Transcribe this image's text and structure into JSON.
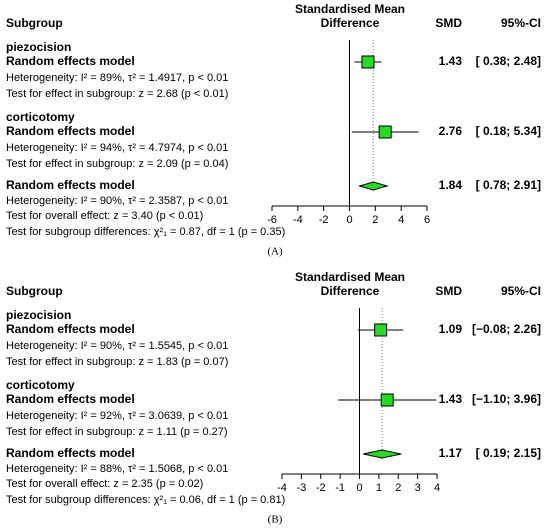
{
  "chart_data": [
    {
      "type": "forest",
      "panel_label": "(A)",
      "header": {
        "subgroup": "Subgroup",
        "effect_line1": "Standardised Mean",
        "effect_line2": "Difference",
        "smd": "SMD",
        "ci": "95%-CI"
      },
      "subgroups": [
        {
          "name": "piezocision",
          "model": "Random effects model",
          "heterogeneity": "Heterogeneity: I² = 89%, τ² = 1.4917, p < 0.01",
          "test": "Test for effect in subgroup: z = 2.68 (p < 0.01)",
          "smd": 1.43,
          "ci_lower": 0.38,
          "ci_upper": 2.48,
          "ci_label": "[ 0.38; 2.48]"
        },
        {
          "name": "corticotomy",
          "model": "Random effects model",
          "heterogeneity": "Heterogeneity: I² = 94%, τ² = 4.7974, p < 0.01",
          "test": "Test for effect in subgroup: z = 2.09 (p = 0.04)",
          "smd": 2.76,
          "ci_lower": 0.18,
          "ci_upper": 5.34,
          "ci_label": "[ 0.18; 5.34]"
        }
      ],
      "overall": {
        "model": "Random effects model",
        "heterogeneity": "Heterogeneity: I² = 90%, τ² = 2.3587, p < 0.01",
        "test": "Test for overall effect: z = 3.40 (p < 0.01)",
        "subgroup_test": "Test for subgroup differences: χ²₁ = 0.87, df = 1 (p = 0.35)",
        "smd": 1.84,
        "ci_lower": 0.78,
        "ci_upper": 2.91,
        "ci_label": "[ 0.78; 2.91]"
      },
      "xlim": [
        -6,
        6
      ],
      "xticks": [
        -6,
        -4,
        -2,
        0,
        2,
        4,
        6
      ],
      "marker_color": "#22dd22",
      "subgroup_color": "#0000cc"
    },
    {
      "type": "forest",
      "panel_label": "(B)",
      "header": {
        "subgroup": "Subgroup",
        "effect_line1": "Standardised Mean",
        "effect_line2": "Difference",
        "smd": "SMD",
        "ci": "95%-CI"
      },
      "subgroups": [
        {
          "name": "piezocision",
          "model": "Random effects model",
          "heterogeneity": "Heterogeneity: I² = 90%, τ² = 1.5545, p < 0.01",
          "test": "Test for effect in subgroup: z = 1.83 (p = 0.07)",
          "smd": 1.09,
          "ci_lower": -0.08,
          "ci_upper": 2.26,
          "ci_label": "[−0.08; 2.26]"
        },
        {
          "name": "corticotomy",
          "model": "Random effects model",
          "heterogeneity": "Heterogeneity: I² = 92%, τ² = 3.0639, p < 0.01",
          "test": "Test for effect in subgroup: z = 1.11 (p = 0.27)",
          "smd": 1.43,
          "ci_lower": -1.1,
          "ci_upper": 3.96,
          "ci_label": "[−1.10; 3.96]"
        }
      ],
      "overall": {
        "model": "Random effects model",
        "heterogeneity": "Heterogeneity: I² = 88%, τ² = 1.5068, p < 0.01",
        "test": "Test for overall effect: z = 2.35 (p = 0.02)",
        "subgroup_test": "Test for subgroup differences: χ²₁ = 0.06, df = 1 (p = 0.81)",
        "smd": 1.17,
        "ci_lower": 0.19,
        "ci_upper": 2.15,
        "ci_label": "[ 0.19; 2.15]"
      },
      "xlim": [
        -4,
        4
      ],
      "xticks": [
        -4,
        -3,
        -2,
        -1,
        0,
        1,
        2,
        3,
        4
      ],
      "marker_color": "#22dd22",
      "subgroup_color": "#0000cc"
    }
  ]
}
